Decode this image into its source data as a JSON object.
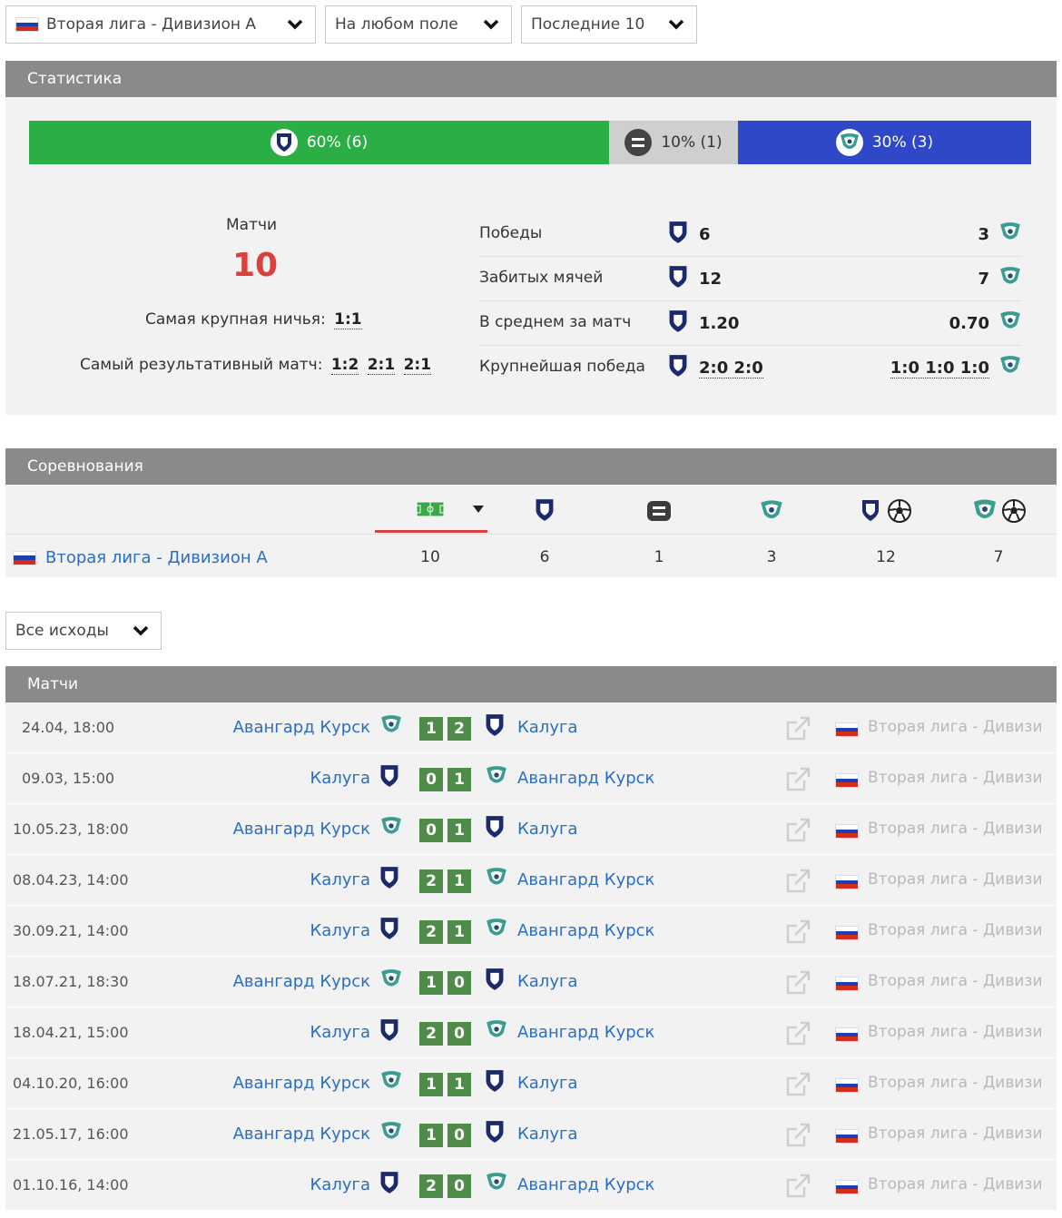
{
  "filters": {
    "league": "Вторая лига - Дивизион А",
    "venue": "На любом поле",
    "range": "Последние 10",
    "outcome": "Все исходы"
  },
  "stats": {
    "title": "Статистика",
    "bar": {
      "home_label": "60% (6)",
      "draw_label": "10% (1)",
      "away_label": "30% (3)",
      "home_pct": 60,
      "draw_pct": 10,
      "away_pct": 30
    },
    "matches_label": "Матчи",
    "matches_count": "10",
    "biggest_draw_label": "Самая крупная ничья:",
    "biggest_draw": "1:1",
    "most_goals_label": "Самый результативный матч:",
    "most_goals": [
      "1:2",
      "2:1",
      "2:1"
    ],
    "rows": [
      {
        "label": "Победы",
        "home": "6",
        "away": "3"
      },
      {
        "label": "Забитых мячей",
        "home": "12",
        "away": "7"
      },
      {
        "label": "В среднем за матч",
        "home": "1.20",
        "away": "0.70"
      },
      {
        "label": "Крупнейшая победа",
        "home": "2:0 2:0",
        "away": "1:0 1:0 1:0"
      }
    ]
  },
  "competitions": {
    "title": "Соревнования",
    "row": {
      "name": "Вторая лига - Дивизион А",
      "matches": "10",
      "home_wins": "6",
      "draws": "1",
      "away_wins": "3",
      "home_goals": "12",
      "away_goals": "7"
    }
  },
  "matches": {
    "title": "Матчи",
    "items": [
      {
        "date": "24.04, 18:00",
        "home": "Авангард Курск",
        "home_team": "avangard",
        "hs": "1",
        "as": "2",
        "away": "Калуга",
        "away_team": "kaluga",
        "league": "Вторая лига - Дивизи"
      },
      {
        "date": "09.03, 15:00",
        "home": "Калуга",
        "home_team": "kaluga",
        "hs": "0",
        "as": "1",
        "away": "Авангард Курск",
        "away_team": "avangard",
        "league": "Вторая лига - Дивизи"
      },
      {
        "date": "10.05.23, 18:00",
        "home": "Авангард Курск",
        "home_team": "avangard",
        "hs": "0",
        "as": "1",
        "away": "Калуга",
        "away_team": "kaluga",
        "league": "Вторая лига - Дивизи"
      },
      {
        "date": "08.04.23, 14:00",
        "home": "Калуга",
        "home_team": "kaluga",
        "hs": "2",
        "as": "1",
        "away": "Авангард Курск",
        "away_team": "avangard",
        "league": "Вторая лига - Дивизи"
      },
      {
        "date": "30.09.21, 14:00",
        "home": "Калуга",
        "home_team": "kaluga",
        "hs": "2",
        "as": "1",
        "away": "Авангард Курск",
        "away_team": "avangard",
        "league": "Вторая лига - Дивизи"
      },
      {
        "date": "18.07.21, 18:30",
        "home": "Авангард Курск",
        "home_team": "avangard",
        "hs": "1",
        "as": "0",
        "away": "Калуга",
        "away_team": "kaluga",
        "league": "Вторая лига - Дивизи"
      },
      {
        "date": "18.04.21, 15:00",
        "home": "Калуга",
        "home_team": "kaluga",
        "hs": "2",
        "as": "0",
        "away": "Авангард Курск",
        "away_team": "avangard",
        "league": "Вторая лига - Дивизи"
      },
      {
        "date": "04.10.20, 16:00",
        "home": "Авангард Курск",
        "home_team": "avangard",
        "hs": "1",
        "as": "1",
        "away": "Калуга",
        "away_team": "kaluga",
        "league": "Вторая лига - Дивизи"
      },
      {
        "date": "21.05.17, 16:00",
        "home": "Авангард Курск",
        "home_team": "avangard",
        "hs": "1",
        "as": "0",
        "away": "Калуга",
        "away_team": "kaluga",
        "league": "Вторая лига - Дивизи"
      },
      {
        "date": "01.10.16, 14:00",
        "home": "Калуга",
        "home_team": "kaluga",
        "hs": "2",
        "as": "0",
        "away": "Авангард Курск",
        "away_team": "avangard",
        "league": "Вторая лига - Дивизи"
      }
    ]
  },
  "colors": {
    "win": "#2cae47",
    "draw": "#cfcfcf",
    "loss": "#2e48c7",
    "score_box": "#4f8c4a",
    "link": "#2a6ec2",
    "count": "#d9403e",
    "header": "#8a8a8a"
  },
  "icons": {
    "kaluga": "shield-crest-icon",
    "avangard": "teal-crest-icon",
    "chevron": "chevron-down-icon",
    "external": "external-link-icon",
    "ball": "soccer-ball-icon",
    "draw": "equals-icon",
    "pitch": "pitch-icon",
    "sort": "sort-down-icon"
  }
}
